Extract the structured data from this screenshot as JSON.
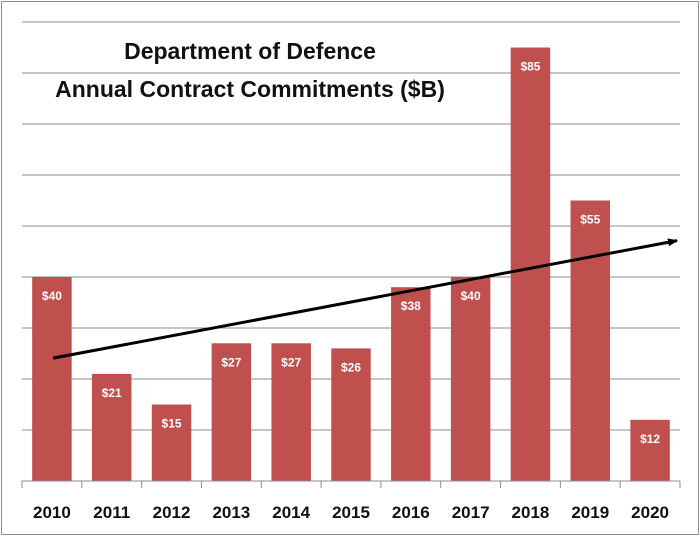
{
  "chart_data": {
    "type": "bar",
    "title": [
      "Department of Defence",
      "Annual Contract Commitments ($B)"
    ],
    "categories": [
      "2010",
      "2011",
      "2012",
      "2013",
      "2014",
      "2015",
      "2016",
      "2017",
      "2018",
      "2019",
      "2020"
    ],
    "values": [
      40,
      21,
      15,
      27,
      27,
      26,
      38,
      40,
      85,
      55,
      12
    ],
    "labels": [
      "$40",
      "$21",
      "$15",
      "$27",
      "$27",
      "$26",
      "$38",
      "$40",
      "$85",
      "$55",
      "$12"
    ],
    "ylim": [
      0,
      90
    ],
    "ystep": 10,
    "grid": true,
    "trendline": {
      "type": "linear",
      "direction": "increasing"
    },
    "colors": {
      "bar": "#c0504d",
      "grid": "#8c8c8c",
      "trend": "#000000",
      "label": "#ffffff"
    }
  }
}
